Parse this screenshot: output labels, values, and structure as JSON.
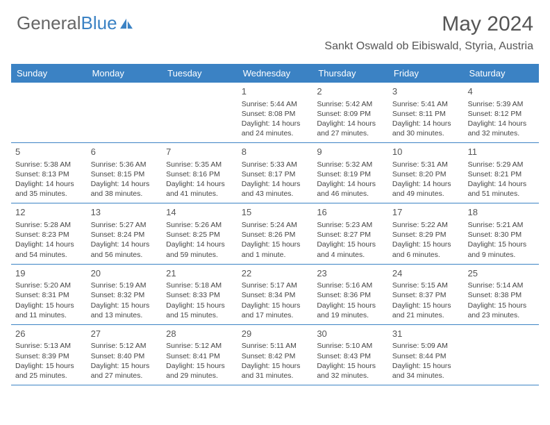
{
  "logo": {
    "part1": "General",
    "part2": "Blue"
  },
  "title": "May 2024",
  "location": "Sankt Oswald ob Eibiswald, Styria, Austria",
  "colors": {
    "header_bg": "#3b82c4",
    "header_text": "#ffffff",
    "border": "#3b82c4",
    "text": "#444444",
    "title": "#555555"
  },
  "typography": {
    "title_fontsize": 30,
    "location_fontsize": 16,
    "dayheader_fontsize": 13,
    "cell_fontsize": 10.5,
    "daynum_fontsize": 13
  },
  "day_names": [
    "Sunday",
    "Monday",
    "Tuesday",
    "Wednesday",
    "Thursday",
    "Friday",
    "Saturday"
  ],
  "weeks": [
    [
      null,
      null,
      null,
      {
        "n": "1",
        "sr": "Sunrise: 5:44 AM",
        "ss": "Sunset: 8:08 PM",
        "dl": "Daylight: 14 hours and 24 minutes."
      },
      {
        "n": "2",
        "sr": "Sunrise: 5:42 AM",
        "ss": "Sunset: 8:09 PM",
        "dl": "Daylight: 14 hours and 27 minutes."
      },
      {
        "n": "3",
        "sr": "Sunrise: 5:41 AM",
        "ss": "Sunset: 8:11 PM",
        "dl": "Daylight: 14 hours and 30 minutes."
      },
      {
        "n": "4",
        "sr": "Sunrise: 5:39 AM",
        "ss": "Sunset: 8:12 PM",
        "dl": "Daylight: 14 hours and 32 minutes."
      }
    ],
    [
      {
        "n": "5",
        "sr": "Sunrise: 5:38 AM",
        "ss": "Sunset: 8:13 PM",
        "dl": "Daylight: 14 hours and 35 minutes."
      },
      {
        "n": "6",
        "sr": "Sunrise: 5:36 AM",
        "ss": "Sunset: 8:15 PM",
        "dl": "Daylight: 14 hours and 38 minutes."
      },
      {
        "n": "7",
        "sr": "Sunrise: 5:35 AM",
        "ss": "Sunset: 8:16 PM",
        "dl": "Daylight: 14 hours and 41 minutes."
      },
      {
        "n": "8",
        "sr": "Sunrise: 5:33 AM",
        "ss": "Sunset: 8:17 PM",
        "dl": "Daylight: 14 hours and 43 minutes."
      },
      {
        "n": "9",
        "sr": "Sunrise: 5:32 AM",
        "ss": "Sunset: 8:19 PM",
        "dl": "Daylight: 14 hours and 46 minutes."
      },
      {
        "n": "10",
        "sr": "Sunrise: 5:31 AM",
        "ss": "Sunset: 8:20 PM",
        "dl": "Daylight: 14 hours and 49 minutes."
      },
      {
        "n": "11",
        "sr": "Sunrise: 5:29 AM",
        "ss": "Sunset: 8:21 PM",
        "dl": "Daylight: 14 hours and 51 minutes."
      }
    ],
    [
      {
        "n": "12",
        "sr": "Sunrise: 5:28 AM",
        "ss": "Sunset: 8:23 PM",
        "dl": "Daylight: 14 hours and 54 minutes."
      },
      {
        "n": "13",
        "sr": "Sunrise: 5:27 AM",
        "ss": "Sunset: 8:24 PM",
        "dl": "Daylight: 14 hours and 56 minutes."
      },
      {
        "n": "14",
        "sr": "Sunrise: 5:26 AM",
        "ss": "Sunset: 8:25 PM",
        "dl": "Daylight: 14 hours and 59 minutes."
      },
      {
        "n": "15",
        "sr": "Sunrise: 5:24 AM",
        "ss": "Sunset: 8:26 PM",
        "dl": "Daylight: 15 hours and 1 minute."
      },
      {
        "n": "16",
        "sr": "Sunrise: 5:23 AM",
        "ss": "Sunset: 8:27 PM",
        "dl": "Daylight: 15 hours and 4 minutes."
      },
      {
        "n": "17",
        "sr": "Sunrise: 5:22 AM",
        "ss": "Sunset: 8:29 PM",
        "dl": "Daylight: 15 hours and 6 minutes."
      },
      {
        "n": "18",
        "sr": "Sunrise: 5:21 AM",
        "ss": "Sunset: 8:30 PM",
        "dl": "Daylight: 15 hours and 9 minutes."
      }
    ],
    [
      {
        "n": "19",
        "sr": "Sunrise: 5:20 AM",
        "ss": "Sunset: 8:31 PM",
        "dl": "Daylight: 15 hours and 11 minutes."
      },
      {
        "n": "20",
        "sr": "Sunrise: 5:19 AM",
        "ss": "Sunset: 8:32 PM",
        "dl": "Daylight: 15 hours and 13 minutes."
      },
      {
        "n": "21",
        "sr": "Sunrise: 5:18 AM",
        "ss": "Sunset: 8:33 PM",
        "dl": "Daylight: 15 hours and 15 minutes."
      },
      {
        "n": "22",
        "sr": "Sunrise: 5:17 AM",
        "ss": "Sunset: 8:34 PM",
        "dl": "Daylight: 15 hours and 17 minutes."
      },
      {
        "n": "23",
        "sr": "Sunrise: 5:16 AM",
        "ss": "Sunset: 8:36 PM",
        "dl": "Daylight: 15 hours and 19 minutes."
      },
      {
        "n": "24",
        "sr": "Sunrise: 5:15 AM",
        "ss": "Sunset: 8:37 PM",
        "dl": "Daylight: 15 hours and 21 minutes."
      },
      {
        "n": "25",
        "sr": "Sunrise: 5:14 AM",
        "ss": "Sunset: 8:38 PM",
        "dl": "Daylight: 15 hours and 23 minutes."
      }
    ],
    [
      {
        "n": "26",
        "sr": "Sunrise: 5:13 AM",
        "ss": "Sunset: 8:39 PM",
        "dl": "Daylight: 15 hours and 25 minutes."
      },
      {
        "n": "27",
        "sr": "Sunrise: 5:12 AM",
        "ss": "Sunset: 8:40 PM",
        "dl": "Daylight: 15 hours and 27 minutes."
      },
      {
        "n": "28",
        "sr": "Sunrise: 5:12 AM",
        "ss": "Sunset: 8:41 PM",
        "dl": "Daylight: 15 hours and 29 minutes."
      },
      {
        "n": "29",
        "sr": "Sunrise: 5:11 AM",
        "ss": "Sunset: 8:42 PM",
        "dl": "Daylight: 15 hours and 31 minutes."
      },
      {
        "n": "30",
        "sr": "Sunrise: 5:10 AM",
        "ss": "Sunset: 8:43 PM",
        "dl": "Daylight: 15 hours and 32 minutes."
      },
      {
        "n": "31",
        "sr": "Sunrise: 5:09 AM",
        "ss": "Sunset: 8:44 PM",
        "dl": "Daylight: 15 hours and 34 minutes."
      },
      null
    ]
  ]
}
